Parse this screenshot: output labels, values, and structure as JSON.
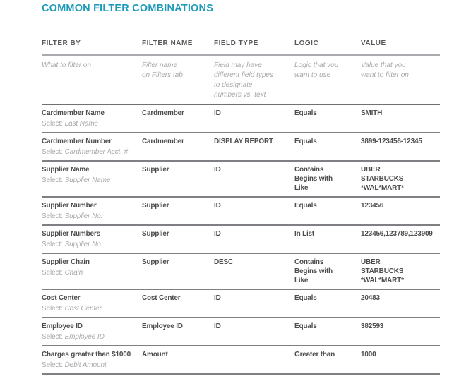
{
  "page": {
    "title": "COMMON FILTER COMBINATIONS"
  },
  "colors": {
    "title_accent": "#1F9BBA",
    "data_text": "#4D4D4F",
    "muted_text": "#A7A9AC",
    "rule_dark": "#6F7174",
    "rule_light": "#A9ABAE"
  },
  "table": {
    "select_prefix": "Select:",
    "headers": [
      "FILTER BY",
      "FILTER NAME",
      "FIELD TYPE",
      "LOGIC",
      "VALUE"
    ],
    "descriptions": [
      [
        "What to filter on"
      ],
      [
        "Filter name",
        "on Filters tab"
      ],
      [
        "Field may have",
        "different field types",
        "to designate",
        "numbers vs. text"
      ],
      [
        "Logic that you",
        "want to use"
      ],
      [
        "Value that you",
        "want to filter on"
      ]
    ],
    "rows": [
      {
        "filter_by": "Cardmember Name",
        "select": "Last Name",
        "filter_name": "Cardmember",
        "field_type": "ID",
        "logic": [
          "Equals"
        ],
        "value": [
          "SMITH"
        ]
      },
      {
        "filter_by": "Cardmember Number",
        "select": "Cardmember Acct. #",
        "filter_name": "Cardmember",
        "field_type": "DISPLAY REPORT",
        "logic": [
          "Equals"
        ],
        "value": [
          "3899-123456-12345"
        ]
      },
      {
        "filter_by": "Supplier Name",
        "select": "Supplier Name",
        "filter_name": "Supplier",
        "field_type": "ID",
        "logic": [
          "Contains",
          "Begins with",
          "Like"
        ],
        "value": [
          "UBER",
          "STARBUCKS",
          "*WAL*MART*"
        ]
      },
      {
        "filter_by": "Supplier Number",
        "select": "Supplier No.",
        "filter_name": "Supplier",
        "field_type": "ID",
        "logic": [
          "Equals"
        ],
        "value": [
          "123456"
        ]
      },
      {
        "filter_by": "Supplier Numbers",
        "select": "Supplier No.",
        "filter_name": "Supplier",
        "field_type": "ID",
        "logic": [
          "In List"
        ],
        "value": [
          "123456,123789,123909"
        ]
      },
      {
        "filter_by": "Supplier Chain",
        "select": "Chain",
        "filter_name": "Supplier",
        "field_type": "DESC",
        "logic": [
          "Contains",
          "Begins with",
          "Like"
        ],
        "value": [
          "UBER",
          "STARBUCKS",
          "*WAL*MART*"
        ]
      },
      {
        "filter_by": "Cost Center",
        "select": "Cost Center",
        "filter_name": "Cost Center",
        "field_type": "ID",
        "logic": [
          "Equals"
        ],
        "value": [
          "20483"
        ]
      },
      {
        "filter_by": "Employee ID",
        "select": "Employee ID",
        "filter_name": "Employee ID",
        "field_type": "ID",
        "logic": [
          "Equals"
        ],
        "value": [
          "382593"
        ]
      },
      {
        "filter_by": "Charges greater than $1000",
        "select": "Debit Amount",
        "filter_name": "Amount",
        "field_type": "",
        "logic": [
          "Greater than"
        ],
        "value": [
          "1000"
        ]
      }
    ]
  }
}
